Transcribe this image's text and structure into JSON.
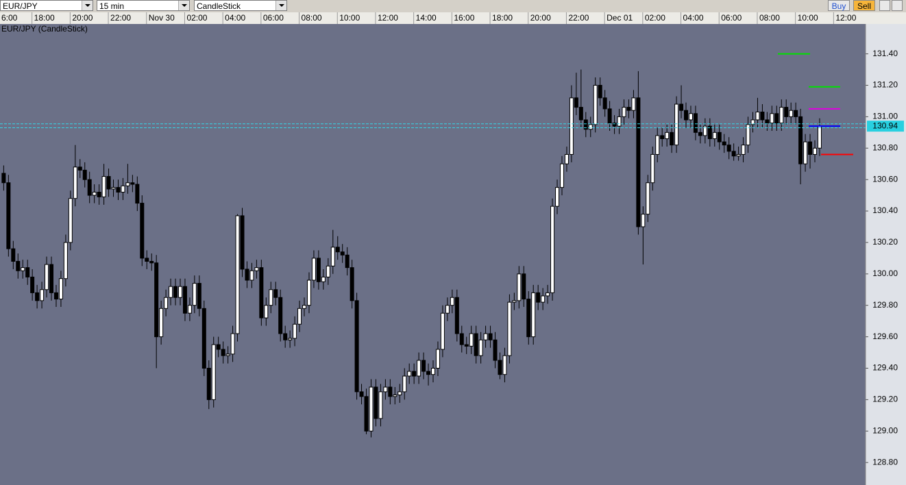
{
  "toolbar": {
    "symbol": "EUR/JPY",
    "interval": "15 min",
    "chart_style": "CandleStick",
    "buy": "Buy",
    "sell": "Sell"
  },
  "chart_data": {
    "type": "candlestick",
    "title": "EUR/JPY (CandleStick)",
    "open": [
      130.64,
      130.58,
      130.16,
      130.08,
      130.02,
      130.04,
      129.98,
      129.88,
      129.83,
      129.9,
      130.06,
      129.88,
      129.84,
      129.97,
      130.2,
      130.48,
      130.68,
      130.66,
      130.6,
      130.5,
      130.52,
      130.49,
      130.62,
      130.54,
      130.55,
      130.52,
      130.56,
      130.58,
      130.57,
      130.45,
      130.1,
      130.08,
      130.07,
      129.6,
      129.78,
      129.85,
      129.92,
      129.85,
      129.92,
      129.75,
      129.8,
      129.94,
      129.78,
      129.4,
      129.2,
      129.55,
      129.52,
      129.48,
      129.49,
      129.62,
      130.37,
      130.03,
      129.96,
      130.02,
      130.04,
      129.72,
      129.8,
      129.9,
      129.85,
      129.62,
      129.58,
      129.59,
      129.68,
      129.78,
      129.8,
      129.96,
      130.1,
      129.95,
      129.98,
      130.05,
      130.17,
      130.14,
      130.12,
      130.04,
      129.83,
      129.25,
      129.22,
      129.0,
      129.28,
      129.08,
      129.25,
      129.28,
      129.22,
      129.23,
      129.25,
      129.35,
      129.38,
      129.35,
      129.45,
      129.38,
      129.36,
      129.4,
      129.52,
      129.75,
      129.8,
      129.85,
      129.62,
      129.55,
      129.54,
      129.62,
      129.48,
      129.58,
      129.62,
      129.58,
      129.45,
      129.36,
      129.48,
      129.82,
      129.83,
      130.0,
      129.84,
      129.6,
      129.88,
      129.82,
      129.86,
      129.88,
      130.43,
      130.55,
      130.7,
      130.76,
      131.12,
      131.06,
      130.98,
      130.92,
      130.95,
      131.2,
      131.12,
      131.05,
      130.96,
      130.94,
      131.0,
      131.06,
      131.04,
      131.12,
      130.3,
      130.38,
      130.58,
      130.76,
      130.88,
      130.86,
      130.9,
      130.82,
      131.08,
      131.04,
      130.98,
      131.02,
      130.9,
      130.88,
      130.94,
      130.86,
      130.9,
      130.84,
      130.82,
      130.78,
      130.75,
      130.76,
      130.82,
      130.95,
      130.98,
      131.03,
      130.98,
      130.96,
      131.02,
      130.96,
      131.06,
      131.0,
      131.04,
      131.0,
      130.7,
      130.84,
      130.76,
      130.8
    ],
    "high": [
      130.69,
      130.63,
      130.21,
      130.13,
      130.09,
      130.09,
      130.03,
      129.93,
      129.95,
      130.11,
      130.11,
      129.93,
      130.02,
      130.25,
      130.53,
      130.82,
      130.73,
      130.71,
      130.65,
      130.57,
      130.57,
      130.7,
      130.67,
      130.6,
      130.6,
      130.61,
      130.7,
      130.63,
      130.62,
      130.5,
      130.15,
      130.13,
      130.12,
      129.83,
      129.9,
      129.97,
      129.97,
      129.97,
      129.97,
      129.85,
      129.99,
      129.99,
      129.83,
      129.45,
      129.6,
      129.6,
      129.57,
      129.54,
      129.67,
      130.38,
      130.42,
      130.08,
      130.07,
      130.09,
      130.09,
      129.85,
      129.95,
      129.95,
      129.9,
      129.67,
      129.64,
      129.73,
      129.83,
      129.85,
      130.01,
      130.15,
      130.15,
      130.03,
      130.1,
      130.28,
      130.24,
      130.19,
      130.17,
      130.09,
      129.88,
      129.3,
      129.27,
      129.33,
      129.33,
      129.3,
      129.33,
      129.33,
      129.28,
      129.3,
      129.4,
      129.43,
      129.43,
      129.5,
      129.5,
      129.43,
      129.45,
      129.57,
      129.8,
      129.85,
      129.9,
      129.9,
      129.67,
      129.6,
      129.67,
      129.67,
      129.63,
      129.67,
      129.67,
      129.63,
      129.5,
      129.53,
      129.87,
      129.88,
      130.05,
      130.05,
      129.89,
      129.93,
      129.93,
      129.91,
      129.93,
      130.48,
      130.6,
      130.75,
      130.81,
      131.2,
      131.28,
      131.3,
      131.03,
      131.0,
      131.25,
      131.25,
      131.17,
      131.1,
      131.01,
      131.05,
      131.11,
      131.11,
      131.17,
      131.29,
      130.43,
      130.63,
      130.81,
      130.93,
      130.93,
      130.95,
      130.95,
      131.13,
      131.2,
      131.09,
      131.07,
      131.07,
      130.95,
      130.99,
      130.99,
      130.95,
      130.95,
      130.89,
      130.87,
      130.83,
      130.81,
      130.87,
      131.0,
      131.03,
      131.12,
      131.08,
      131.03,
      131.07,
      131.07,
      131.11,
      131.11,
      131.09,
      131.09,
      131.05,
      130.89,
      130.89,
      130.85,
      130.99
    ],
    "low": [
      130.53,
      130.11,
      130.03,
      129.97,
      129.97,
      129.93,
      129.83,
      129.78,
      129.78,
      129.85,
      129.83,
      129.79,
      129.79,
      129.92,
      130.15,
      130.43,
      130.61,
      130.55,
      130.45,
      130.45,
      130.44,
      130.44,
      130.49,
      130.49,
      130.47,
      130.47,
      130.51,
      130.52,
      130.4,
      130.05,
      130.03,
      130.02,
      129.4,
      129.55,
      129.73,
      129.8,
      129.8,
      129.8,
      129.7,
      129.7,
      129.75,
      129.73,
      129.35,
      129.14,
      129.15,
      129.47,
      129.43,
      129.43,
      129.44,
      129.57,
      129.98,
      129.91,
      129.91,
      129.97,
      129.67,
      129.67,
      129.75,
      129.8,
      129.57,
      129.53,
      129.53,
      129.54,
      129.63,
      129.73,
      129.75,
      129.91,
      129.9,
      129.9,
      129.93,
      130.0,
      130.09,
      130.07,
      129.99,
      129.78,
      129.2,
      129.17,
      128.98,
      128.96,
      129.03,
      129.03,
      129.2,
      129.17,
      129.17,
      129.18,
      129.2,
      129.3,
      129.3,
      129.3,
      129.33,
      129.29,
      129.31,
      129.35,
      129.47,
      129.7,
      129.75,
      129.57,
      129.5,
      129.49,
      129.49,
      129.43,
      129.43,
      129.53,
      129.53,
      129.4,
      129.33,
      129.31,
      129.43,
      129.77,
      129.78,
      129.79,
      129.55,
      129.55,
      129.77,
      129.77,
      129.81,
      129.83,
      130.38,
      130.5,
      130.65,
      130.71,
      131.01,
      130.93,
      130.87,
      130.87,
      130.9,
      131.07,
      131.0,
      130.91,
      130.89,
      130.89,
      130.95,
      130.99,
      130.99,
      130.25,
      130.06,
      130.33,
      130.53,
      130.71,
      130.81,
      130.81,
      130.77,
      130.77,
      130.99,
      130.93,
      130.93,
      130.85,
      130.83,
      130.83,
      130.81,
      130.81,
      130.79,
      130.77,
      130.73,
      130.72,
      130.72,
      130.71,
      130.77,
      130.9,
      130.93,
      130.93,
      130.91,
      130.91,
      130.91,
      130.91,
      130.95,
      130.95,
      130.95,
      130.57,
      130.65,
      130.67,
      130.71,
      130.75
    ],
    "close": [
      130.58,
      130.16,
      130.08,
      130.02,
      130.04,
      129.98,
      129.88,
      129.83,
      129.9,
      130.06,
      129.88,
      129.84,
      129.97,
      130.2,
      130.48,
      130.68,
      130.66,
      130.6,
      130.5,
      130.52,
      130.49,
      130.62,
      130.54,
      130.55,
      130.52,
      130.56,
      130.58,
      130.57,
      130.45,
      130.1,
      130.08,
      130.07,
      129.6,
      129.78,
      129.85,
      129.92,
      129.85,
      129.92,
      129.75,
      129.8,
      129.94,
      129.78,
      129.4,
      129.2,
      129.55,
      129.52,
      129.48,
      129.49,
      129.62,
      130.37,
      130.03,
      129.96,
      130.02,
      130.04,
      129.72,
      129.8,
      129.9,
      129.85,
      129.62,
      129.58,
      129.59,
      129.68,
      129.78,
      129.8,
      129.96,
      130.1,
      129.95,
      129.98,
      130.05,
      130.17,
      130.14,
      130.12,
      130.04,
      129.83,
      129.25,
      129.22,
      129.0,
      129.28,
      129.08,
      129.25,
      129.28,
      129.22,
      129.23,
      129.25,
      129.35,
      129.38,
      129.35,
      129.45,
      129.38,
      129.36,
      129.4,
      129.52,
      129.75,
      129.8,
      129.85,
      129.62,
      129.55,
      129.54,
      129.62,
      129.48,
      129.58,
      129.62,
      129.58,
      129.45,
      129.36,
      129.48,
      129.82,
      129.83,
      130.0,
      129.84,
      129.6,
      129.88,
      129.82,
      129.86,
      129.88,
      130.43,
      130.55,
      130.7,
      130.76,
      131.12,
      131.06,
      130.98,
      130.92,
      130.95,
      131.2,
      131.12,
      131.05,
      130.96,
      130.94,
      131.0,
      131.06,
      131.04,
      131.12,
      130.3,
      130.38,
      130.58,
      130.76,
      130.88,
      130.86,
      130.9,
      130.82,
      131.08,
      131.04,
      130.98,
      131.02,
      130.9,
      130.88,
      130.94,
      130.86,
      130.9,
      130.84,
      130.82,
      130.78,
      130.75,
      130.76,
      130.82,
      130.95,
      130.98,
      131.03,
      130.98,
      130.96,
      131.02,
      130.96,
      131.06,
      131.0,
      131.04,
      131.0,
      130.7,
      130.84,
      130.76,
      130.8,
      130.94
    ],
    "xlim": [
      -0.7,
      180.7
    ],
    "xticks": [
      {
        "value": -2,
        "label": "6:00"
      },
      {
        "value": 6,
        "label": "18:00"
      },
      {
        "value": 14,
        "label": "20:00"
      },
      {
        "value": 22,
        "label": "22:00"
      },
      {
        "value": 30,
        "label": "Nov 30"
      },
      {
        "value": 38,
        "label": "02:00"
      },
      {
        "value": 46,
        "label": "04:00"
      },
      {
        "value": 54,
        "label": "06:00"
      },
      {
        "value": 62,
        "label": "08:00"
      },
      {
        "value": 70,
        "label": "10:00"
      },
      {
        "value": 78,
        "label": "12:00"
      },
      {
        "value": 86,
        "label": "14:00"
      },
      {
        "value": 94,
        "label": "16:00"
      },
      {
        "value": 102,
        "label": "18:00"
      },
      {
        "value": 110,
        "label": "20:00"
      },
      {
        "value": 118,
        "label": "22:00"
      },
      {
        "value": 126,
        "label": "Dec 01"
      },
      {
        "value": 134,
        "label": "02:00"
      },
      {
        "value": 142,
        "label": "04:00"
      },
      {
        "value": 150,
        "label": "06:00"
      },
      {
        "value": 158,
        "label": "08:00"
      },
      {
        "value": 166,
        "label": "10:00"
      },
      {
        "value": 174,
        "label": "12:00"
      }
    ],
    "ylim": [
      128.67,
      131.59
    ],
    "yticks": [
      {
        "value": 128.8,
        "label": "128.80"
      },
      {
        "value": 129,
        "label": "129.00"
      },
      {
        "value": 129.2,
        "label": "129.20"
      },
      {
        "value": 129.4,
        "label": "129.40"
      },
      {
        "value": 129.6,
        "label": "129.60"
      },
      {
        "value": 129.8,
        "label": "129.80"
      },
      {
        "value": 130,
        "label": "130.00"
      },
      {
        "value": 130.2,
        "label": "130.20"
      },
      {
        "value": 130.4,
        "label": "130.40"
      },
      {
        "value": 130.6,
        "label": "130.60"
      },
      {
        "value": 130.8,
        "label": "130.80"
      },
      {
        "value": 131,
        "label": "131.00"
      },
      {
        "value": 131.2,
        "label": "131.20"
      },
      {
        "value": 131.4,
        "label": "131.40"
      }
    ],
    "up_color": "#ffffff",
    "down_color": "#000000",
    "background": "#6b7087",
    "levels": [
      {
        "value": 131.4,
        "color": "#00e000"
      },
      {
        "value": 131.19,
        "color": "#00e000"
      },
      {
        "value": 131.05,
        "color": "#e000e0"
      },
      {
        "value": 130.94,
        "color": "#0000ff"
      },
      {
        "value": 130.76,
        "color": "#ff0000"
      }
    ],
    "price_lines": [
      130.955,
      130.93
    ],
    "last_price": 130.94
  }
}
